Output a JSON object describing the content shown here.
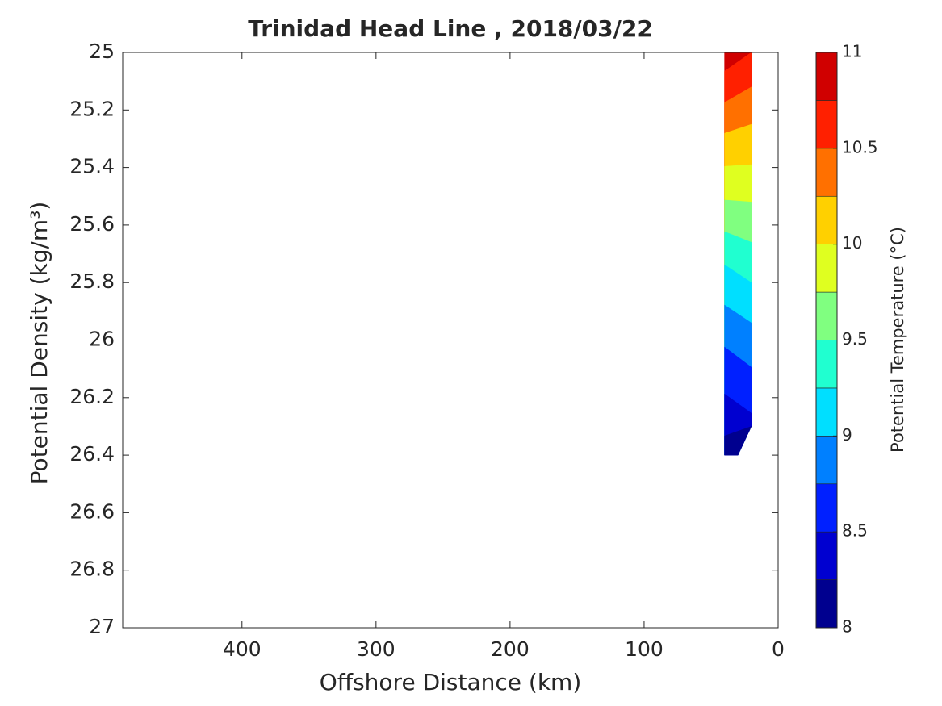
{
  "chart_data": {
    "type": "contourf",
    "title": "Trinidad Head Line , 2018/03/22",
    "x_label": "Offshore Distance (km)",
    "y_label": "Potential Density (kg/m³)",
    "xlim": [
      489,
      0
    ],
    "xticks": [
      400,
      300,
      200,
      100,
      0
    ],
    "ylim": [
      25,
      27
    ],
    "yticks": [
      25,
      25.2,
      25.4,
      25.6,
      25.8,
      26,
      26.2,
      26.4,
      26.6,
      26.8,
      27
    ],
    "contour": {
      "levels": [
        8,
        8.25,
        8.5,
        8.75,
        9,
        9.25,
        9.5,
        9.75,
        10,
        10.25,
        10.5,
        10.75,
        11
      ],
      "colors": [
        "#00008f",
        "#0000d0",
        "#0020ff",
        "#0080ff",
        "#00dfff",
        "#20ffd0",
        "#80ff80",
        "#dfff20",
        "#ffd000",
        "#ff7000",
        "#ff2000",
        "#d00000"
      ],
      "top": 25,
      "sections": [
        {
          "x": 40,
          "crossings": [
            26.333,
            26.187,
            26.024,
            25.878,
            25.738,
            25.623,
            25.513,
            25.396,
            25.281,
            25.174,
            25.065
          ]
        },
        {
          "x": 20,
          "crossings": [
            null,
            26.254,
            26.094,
            25.94,
            25.8,
            25.66,
            25.52,
            25.39,
            25.25,
            25.12,
            25.0
          ]
        }
      ],
      "outline_bottom": {
        "x": [
          20,
          30,
          40
        ],
        "y": [
          26.3,
          26.4,
          26.4
        ]
      }
    },
    "colorbar_label": "Potential Temperature (°C)",
    "colorbar_ticks": [
      8,
      8.5,
      9,
      9.5,
      10,
      10.5,
      11
    ]
  }
}
